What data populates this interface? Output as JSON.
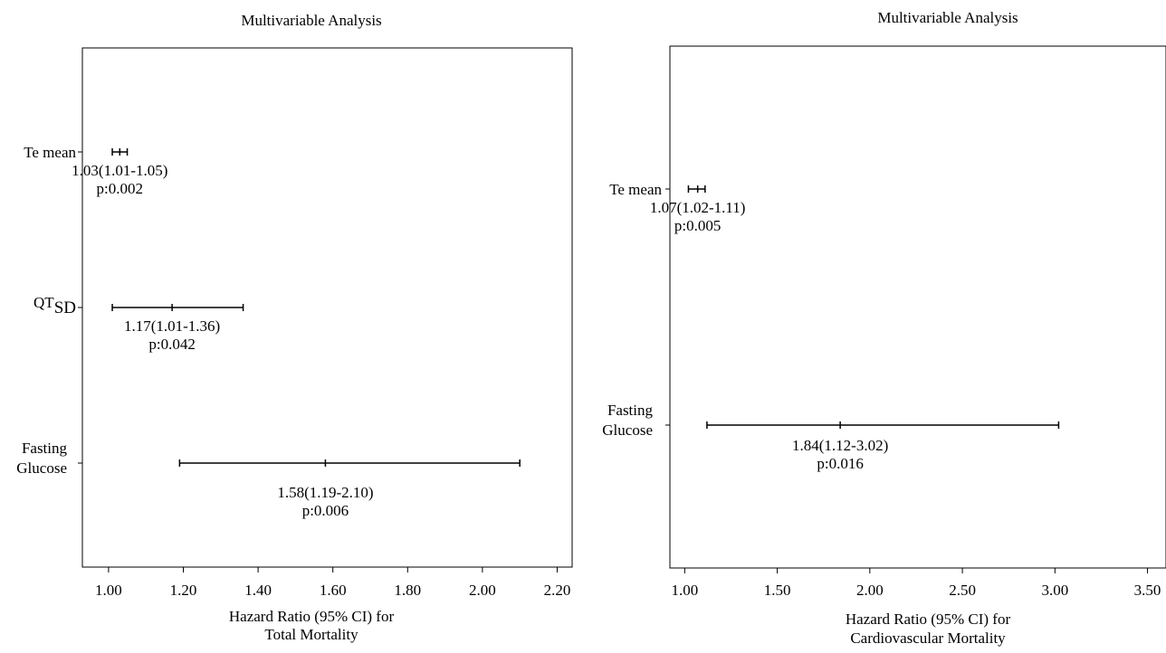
{
  "chart_data": [
    {
      "type": "forest",
      "title": "Multivariable Analysis",
      "xlabel_lines": [
        "Hazard Ratio (95% CI) for",
        "Total Mortality"
      ],
      "xlim": [
        0.93,
        2.24
      ],
      "xticks": [
        1.0,
        1.2,
        1.4,
        1.6,
        1.8,
        2.0,
        2.2
      ],
      "xtick_labels": [
        "1.00",
        "1.20",
        "1.40",
        "1.60",
        "1.80",
        "2.00",
        "2.20"
      ],
      "rows": [
        {
          "label": "Te mean",
          "hr": 1.03,
          "lo": 1.01,
          "hi": 1.05,
          "ci_text": "1.03(1.01-1.05)",
          "p_text": "p:0.002"
        },
        {
          "label": "QT",
          "label_sub": "SD",
          "hr": 1.17,
          "lo": 1.01,
          "hi": 1.36,
          "ci_text": "1.17(1.01-1.36)",
          "p_text": "p:0.042"
        },
        {
          "label_lines": [
            "Fasting",
            "Glucose"
          ],
          "hr": 1.58,
          "lo": 1.19,
          "hi": 2.1,
          "ci_text": "1.58(1.19-2.10)",
          "p_text": "p:0.006"
        }
      ]
    },
    {
      "type": "forest",
      "title": "Multivariable Analysis",
      "xlabel_lines": [
        "Hazard Ratio (95% CI) for",
        "Cardiovascular Mortality"
      ],
      "xlim": [
        0.92,
        3.6
      ],
      "xticks": [
        1.0,
        1.5,
        2.0,
        2.5,
        3.0,
        3.5
      ],
      "xtick_labels": [
        "1.00",
        "1.50",
        "2.00",
        "2.50",
        "3.00",
        "3.50"
      ],
      "rows": [
        {
          "label": "Te mean",
          "hr": 1.07,
          "lo": 1.02,
          "hi": 1.11,
          "ci_text": "1.07(1.02-1.11)",
          "p_text": "p:0.005"
        },
        {
          "label_lines": [
            "Fasting",
            "Glucose"
          ],
          "hr": 1.84,
          "lo": 1.12,
          "hi": 3.02,
          "ci_text": "1.84(1.12-3.02)",
          "p_text": "p:0.016"
        }
      ]
    }
  ]
}
